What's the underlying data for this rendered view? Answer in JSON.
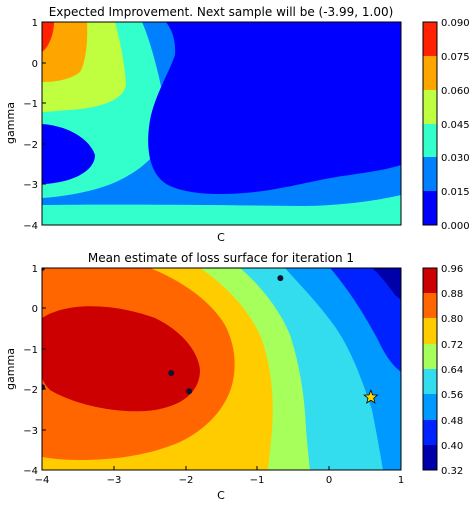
{
  "chart_data": [
    {
      "type": "heatmap",
      "subtype": "filled-contour",
      "title": "Expected Improvement. Next sample will be (-3.99, 1.00)",
      "xlabel": "C",
      "ylabel": "gamma",
      "xlim": [
        -4,
        1
      ],
      "ylim": [
        -4,
        1
      ],
      "x_ticks": [],
      "y_ticks": [
        "1",
        "0",
        "−1",
        "−2",
        "−3",
        "−4"
      ],
      "colorbar": {
        "levels": [
          "0.000",
          "0.015",
          "0.030",
          "0.045",
          "0.060",
          "0.075",
          "0.090"
        ],
        "colors": [
          "#0000ff",
          "#0080ff",
          "#33ffcc",
          "#bfff40",
          "#ffa500",
          "#ff2200"
        ]
      },
      "regions": [
        {
          "level": "0.000-0.015",
          "color": "#0000ff",
          "shape": "dominant region in upper-right and center"
        },
        {
          "level": "0.000-0.015",
          "color": "#0000ff",
          "shape": "left-center pocket around C=-4 to -3.3, gamma=-1.3 to -2.8"
        },
        {
          "level": "0.015-0.030",
          "color": "#0080ff",
          "shape": "band along bottom edge and surrounding blue regions"
        },
        {
          "level": "0.030-0.045",
          "color": "#33ffcc",
          "shape": "bottom-left and bottom-right patches, band near C=-3"
        },
        {
          "level": "0.045-0.060",
          "color": "#bfff40",
          "shape": "upper-left region C=-4 to -2.7"
        },
        {
          "level": "0.060-0.075",
          "color": "#ffa500",
          "shape": "upper-left corner C=-4 to -3.5, gamma 0.5 to 1"
        },
        {
          "level": "0.075-0.090",
          "color": "#ff2200",
          "shape": "top-left corner near (-4, 1)"
        }
      ]
    },
    {
      "type": "heatmap",
      "subtype": "filled-contour",
      "title": "Mean estimate of loss surface for iteration 1",
      "xlabel": "C",
      "ylabel": "gamma",
      "xlim": [
        -4,
        1
      ],
      "ylim": [
        -4,
        1
      ],
      "x_ticks": [
        "−4",
        "−3",
        "−2",
        "−1",
        "0",
        "1"
      ],
      "y_ticks": [
        "1",
        "0",
        "−1",
        "−2",
        "−3",
        "−4"
      ],
      "colorbar": {
        "levels": [
          "0.32",
          "0.40",
          "0.48",
          "0.56",
          "0.64",
          "0.72",
          "0.80",
          "0.88",
          "0.96"
        ],
        "colors": [
          "#0000aa",
          "#0022ff",
          "#0099ff",
          "#33ddee",
          "#a6ff5a",
          "#ffcc00",
          "#ff6600",
          "#cc0000"
        ]
      },
      "samples": [
        {
          "x": -4.0,
          "y": 1.0
        },
        {
          "x": -0.68,
          "y": 0.75
        },
        {
          "x": -2.2,
          "y": -1.6
        },
        {
          "x": -1.95,
          "y": -2.05
        },
        {
          "x": -4.0,
          "y": -1.95
        }
      ],
      "next_sample": {
        "x": 0.58,
        "y": -2.2,
        "marker": "star",
        "color": "#ffd700"
      }
    }
  ]
}
